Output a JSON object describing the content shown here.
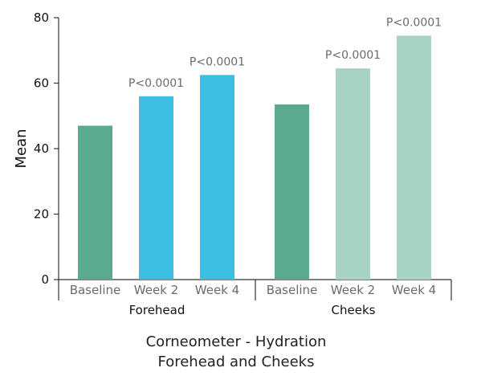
{
  "chart_data": {
    "type": "bar",
    "title": "Corneometer - Hydration",
    "subtitle": "Forehead and Cheeks",
    "ylabel": "Mean",
    "xlabel": "",
    "ylim": [
      0,
      80
    ],
    "yticks": [
      0,
      20,
      40,
      60,
      80
    ],
    "grid": false,
    "groups": [
      {
        "name": "Forehead",
        "bars": [
          {
            "category": "Baseline",
            "value": 47,
            "color": "#5aab8e",
            "annotation": ""
          },
          {
            "category": "Week 2",
            "value": 56,
            "color": "#3dbde3",
            "annotation": "P<0.0001"
          },
          {
            "category": "Week 4",
            "value": 62.5,
            "color": "#3dbde3",
            "annotation": "P<0.0001"
          }
        ]
      },
      {
        "name": "Cheeks",
        "bars": [
          {
            "category": "Baseline",
            "value": 53.5,
            "color": "#5aab8e",
            "annotation": ""
          },
          {
            "category": "Week 2",
            "value": 64.5,
            "color": "#a6d3c5",
            "annotation": "P<0.0001"
          },
          {
            "category": "Week 4",
            "value": 74.5,
            "color": "#a6d3c5",
            "annotation": "P<0.0001"
          }
        ]
      }
    ]
  }
}
